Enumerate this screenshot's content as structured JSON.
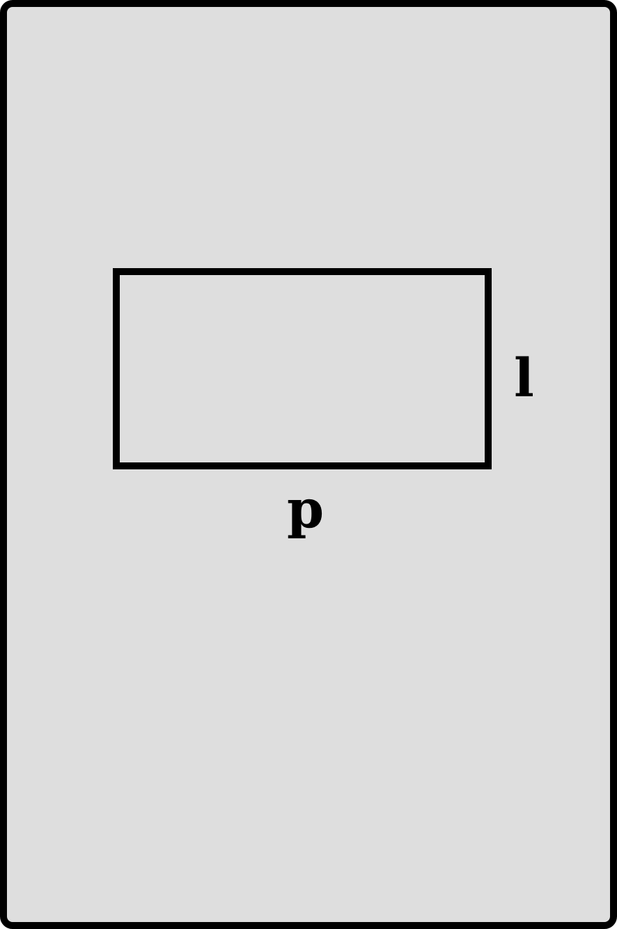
{
  "diagram": {
    "side_label": "l",
    "bottom_label": "p",
    "colors": {
      "background": "#dedede",
      "stroke": "#000000"
    }
  }
}
